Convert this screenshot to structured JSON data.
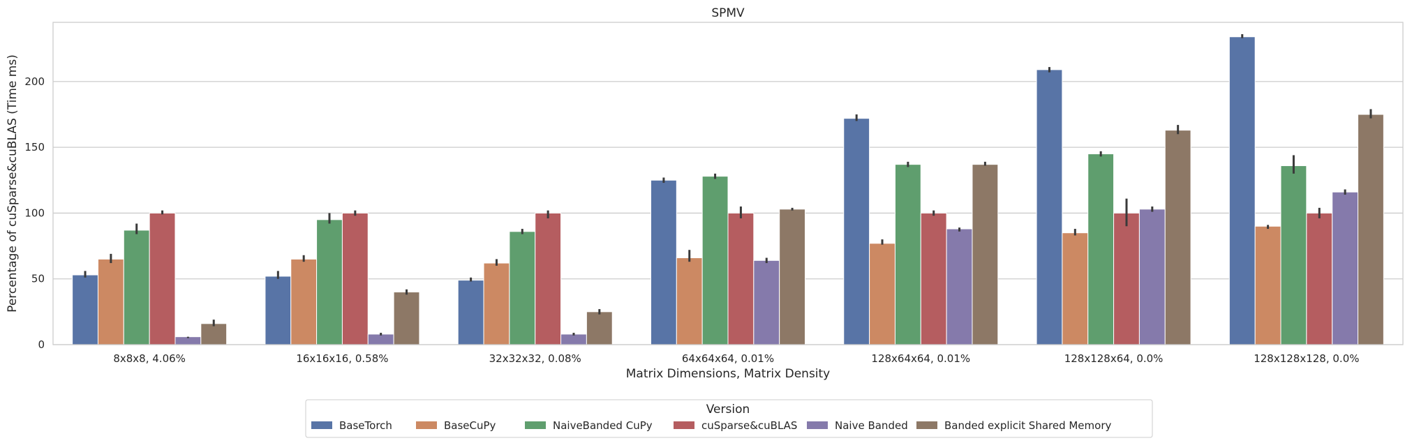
{
  "chart_data": {
    "type": "bar",
    "title": "SPMV",
    "xlabel": "Matrix Dimensions, Matrix Density",
    "ylabel": "Percentage of cuSparse&cuBLAS (Time ms)",
    "ylim": [
      0,
      245
    ],
    "yticks": [
      0,
      50,
      100,
      150,
      200
    ],
    "grid": true,
    "legend": {
      "title": "Version",
      "placement": "bottom-center"
    },
    "categories": [
      "8x8x8, 4.06%",
      "16x16x16, 0.58%",
      "32x32x32, 0.08%",
      "64x64x64, 0.01%",
      "128x64x64, 0.01%",
      "128x128x64, 0.0%",
      "128x128x128, 0.0%"
    ],
    "series": [
      {
        "name": "BaseTorch",
        "color": "#5874a6",
        "values": [
          53,
          52,
          49,
          125,
          172,
          209,
          234
        ],
        "err_low": [
          51,
          50,
          48,
          123,
          170,
          207,
          233
        ],
        "err_high": [
          56,
          56,
          51,
          127,
          175,
          211,
          236
        ]
      },
      {
        "name": "BaseCuPy",
        "color": "#cc8963",
        "values": [
          65,
          65,
          62,
          66,
          77,
          85,
          90
        ],
        "err_low": [
          62,
          63,
          60,
          63,
          76,
          83,
          88
        ],
        "err_high": [
          69,
          68,
          65,
          72,
          80,
          88,
          91
        ]
      },
      {
        "name": "NaiveBanded CuPy",
        "color": "#5f9e6e",
        "values": [
          87,
          95,
          86,
          128,
          137,
          145,
          136
        ],
        "err_low": [
          84,
          92,
          84,
          126,
          135,
          143,
          130
        ],
        "err_high": [
          92,
          100,
          88,
          130,
          139,
          147,
          144
        ]
      },
      {
        "name": "cuSparse&cuBLAS",
        "color": "#b55d60",
        "values": [
          100,
          100,
          100,
          100,
          100,
          100,
          100
        ],
        "err_low": [
          99,
          98,
          96,
          96,
          98,
          90,
          96
        ],
        "err_high": [
          102,
          102,
          102,
          105,
          102,
          111,
          104
        ]
      },
      {
        "name": "Naive Banded",
        "color": "#857aab",
        "values": [
          6,
          8,
          8,
          64,
          88,
          103,
          116
        ],
        "err_low": [
          5,
          7,
          7,
          62,
          86,
          101,
          114
        ],
        "err_high": [
          6,
          9,
          9,
          66,
          89,
          105,
          118
        ]
      },
      {
        "name": "Banded explicit Shared Memory",
        "color": "#8d7866",
        "values": [
          16,
          40,
          25,
          103,
          137,
          163,
          175
        ],
        "err_low": [
          14,
          38,
          23,
          102,
          136,
          160,
          172
        ],
        "err_high": [
          19,
          42,
          27,
          104,
          139,
          167,
          179
        ]
      }
    ]
  }
}
